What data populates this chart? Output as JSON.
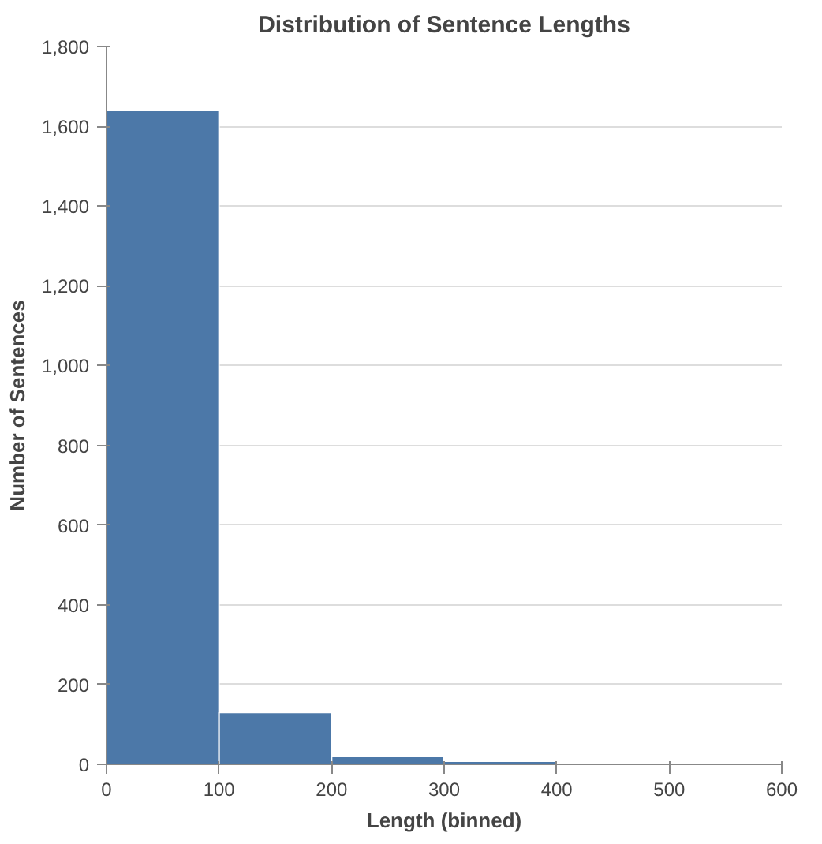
{
  "chart_data": {
    "type": "histogram",
    "title": "Distribution of Sentence Lengths",
    "xlabel": "Length (binned)",
    "ylabel": "Number of Sentences",
    "bins": [
      0,
      100,
      200,
      300,
      400,
      500,
      600
    ],
    "values": [
      1640,
      130,
      20,
      8,
      2,
      2
    ],
    "color": "#4c78a8",
    "xlim": [
      0,
      600
    ],
    "xticks": [
      0,
      100,
      200,
      300,
      400,
      500,
      600
    ],
    "ylim": [
      0,
      1800
    ],
    "yticks": [
      {
        "value": 0,
        "label": "0"
      },
      {
        "value": 200,
        "label": "200"
      },
      {
        "value": 400,
        "label": "400"
      },
      {
        "value": 600,
        "label": "600"
      },
      {
        "value": 800,
        "label": "800"
      },
      {
        "value": 1000,
        "label": "1,000"
      },
      {
        "value": 1200,
        "label": "1,200"
      },
      {
        "value": 1400,
        "label": "1,400"
      },
      {
        "value": 1600,
        "label": "1,600"
      },
      {
        "value": 1800,
        "label": "1,800"
      }
    ],
    "grid": "y"
  }
}
